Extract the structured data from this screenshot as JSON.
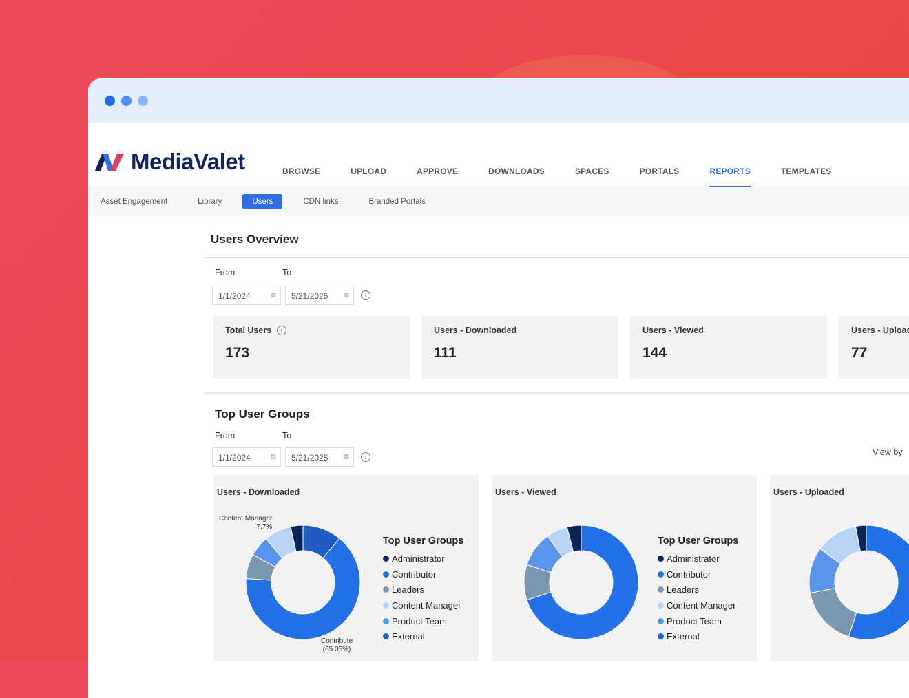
{
  "brand": {
    "name": "MediaValet"
  },
  "nav": [
    "BROWSE",
    "UPLOAD",
    "APPROVE",
    "DOWNLOADS",
    "SPACES",
    "PORTALS",
    "REPORTS",
    "TEMPLATES"
  ],
  "nav_active": "REPORTS",
  "subnav": [
    "Asset Engagement",
    "Library",
    "Users",
    "CDN links",
    "Branded Portals"
  ],
  "subnav_active": "Users",
  "overview": {
    "title": "Users Overview",
    "from_label": "From",
    "to_label": "To",
    "from": "1/1/2024",
    "to": "5/21/2025",
    "cards": [
      {
        "title": "Total Users",
        "value": "173"
      },
      {
        "title": "Users - Downloaded",
        "value": "111"
      },
      {
        "title": "Users - Viewed",
        "value": "144"
      },
      {
        "title": "Users - Upload",
        "value": "77"
      }
    ]
  },
  "groups": {
    "title": "Top User Groups",
    "from_label": "From",
    "to_label": "To",
    "from": "1/1/2024",
    "to": "5/21/2025",
    "view_by": "View by"
  },
  "colors": {
    "Administrator": "#0b2559",
    "Contributor": "#2470e6",
    "Leaders": "#7a97ad",
    "Content Manager": "#b9d3f7",
    "Product Team": "#5a94ec",
    "External": "#1f5cc4"
  },
  "chart_data": [
    {
      "type": "pie",
      "title": "Users - Downloaded",
      "legend_title": "Top User Groups",
      "legend": [
        "Administrator",
        "Contributor",
        "Leaders",
        "Content Manager",
        "Product Team",
        "External"
      ],
      "slices": [
        {
          "name": "External",
          "value": 11
        },
        {
          "name": "Contributor",
          "value": 65.05
        },
        {
          "name": "Leaders",
          "value": 7
        },
        {
          "name": "Product Team",
          "value": 5.75
        },
        {
          "name": "Content Manager",
          "value": 7.7
        },
        {
          "name": "Administrator",
          "value": 3.5
        }
      ],
      "annotations": [
        {
          "line1": "Content Manager",
          "line2": "7.7%"
        },
        {
          "line1": "Contribute",
          "line2": "(65.05%)"
        }
      ]
    },
    {
      "type": "pie",
      "title": "Users - Viewed",
      "legend_title": "Top User Groups",
      "legend": [
        "Administrator",
        "Contributor",
        "Leaders",
        "Content Manager",
        "Product Team",
        "External"
      ],
      "slices": [
        {
          "name": "Contributor",
          "value": 70
        },
        {
          "name": "Leaders",
          "value": 10
        },
        {
          "name": "Product Team",
          "value": 10
        },
        {
          "name": "Content Manager",
          "value": 6
        },
        {
          "name": "Administrator",
          "value": 4
        }
      ]
    },
    {
      "type": "pie",
      "title": "Users - Uploaded",
      "slices": [
        {
          "name": "Contributor",
          "value": 55
        },
        {
          "name": "Leaders",
          "value": 17
        },
        {
          "name": "Product Team",
          "value": 13
        },
        {
          "name": "Content Manager",
          "value": 12
        },
        {
          "name": "Administrator",
          "value": 3
        }
      ]
    }
  ]
}
